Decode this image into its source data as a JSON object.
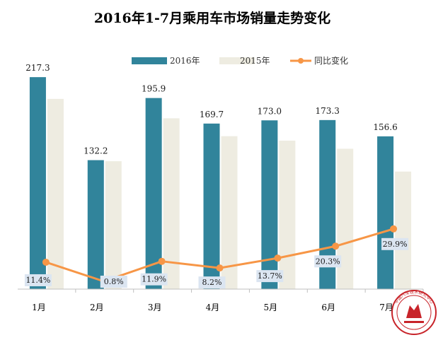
{
  "chart_data": {
    "type": "bar",
    "title": "2016年1-7月乘用车市场销量走势变化",
    "categories": [
      "1月",
      "2月",
      "3月",
      "4月",
      "5月",
      "6月",
      "7月"
    ],
    "series": [
      {
        "name": "2016年",
        "type": "bar",
        "color": "#31849b",
        "values": [
          217.3,
          132.2,
          195.9,
          169.7,
          173.0,
          173.3,
          156.6
        ],
        "labels": [
          "217.3",
          "132.2",
          "195.9",
          "169.7",
          "173.0",
          "173.3",
          "156.6"
        ]
      },
      {
        "name": "2015年",
        "type": "bar",
        "color": "#eeece1",
        "values": [
          195.0,
          131.1,
          175.1,
          156.8,
          152.2,
          143.9,
          120.5
        ]
      },
      {
        "name": "同比变化",
        "type": "line",
        "color": "#f79646",
        "axis": "secondary",
        "values": [
          11.4,
          0.8,
          11.9,
          8.2,
          13.7,
          20.3,
          29.9
        ],
        "labels": [
          "11.4%",
          "0.8%",
          "11.9%",
          "8.2%",
          "13.7%",
          "20.3%",
          "29.9%"
        ]
      }
    ],
    "ylim": [
      0,
      250
    ],
    "y2lim": [
      -5,
      40
    ],
    "grid": false,
    "legend_position": "top"
  },
  "watermark": {
    "text": "中国汽车技术研究中心"
  }
}
